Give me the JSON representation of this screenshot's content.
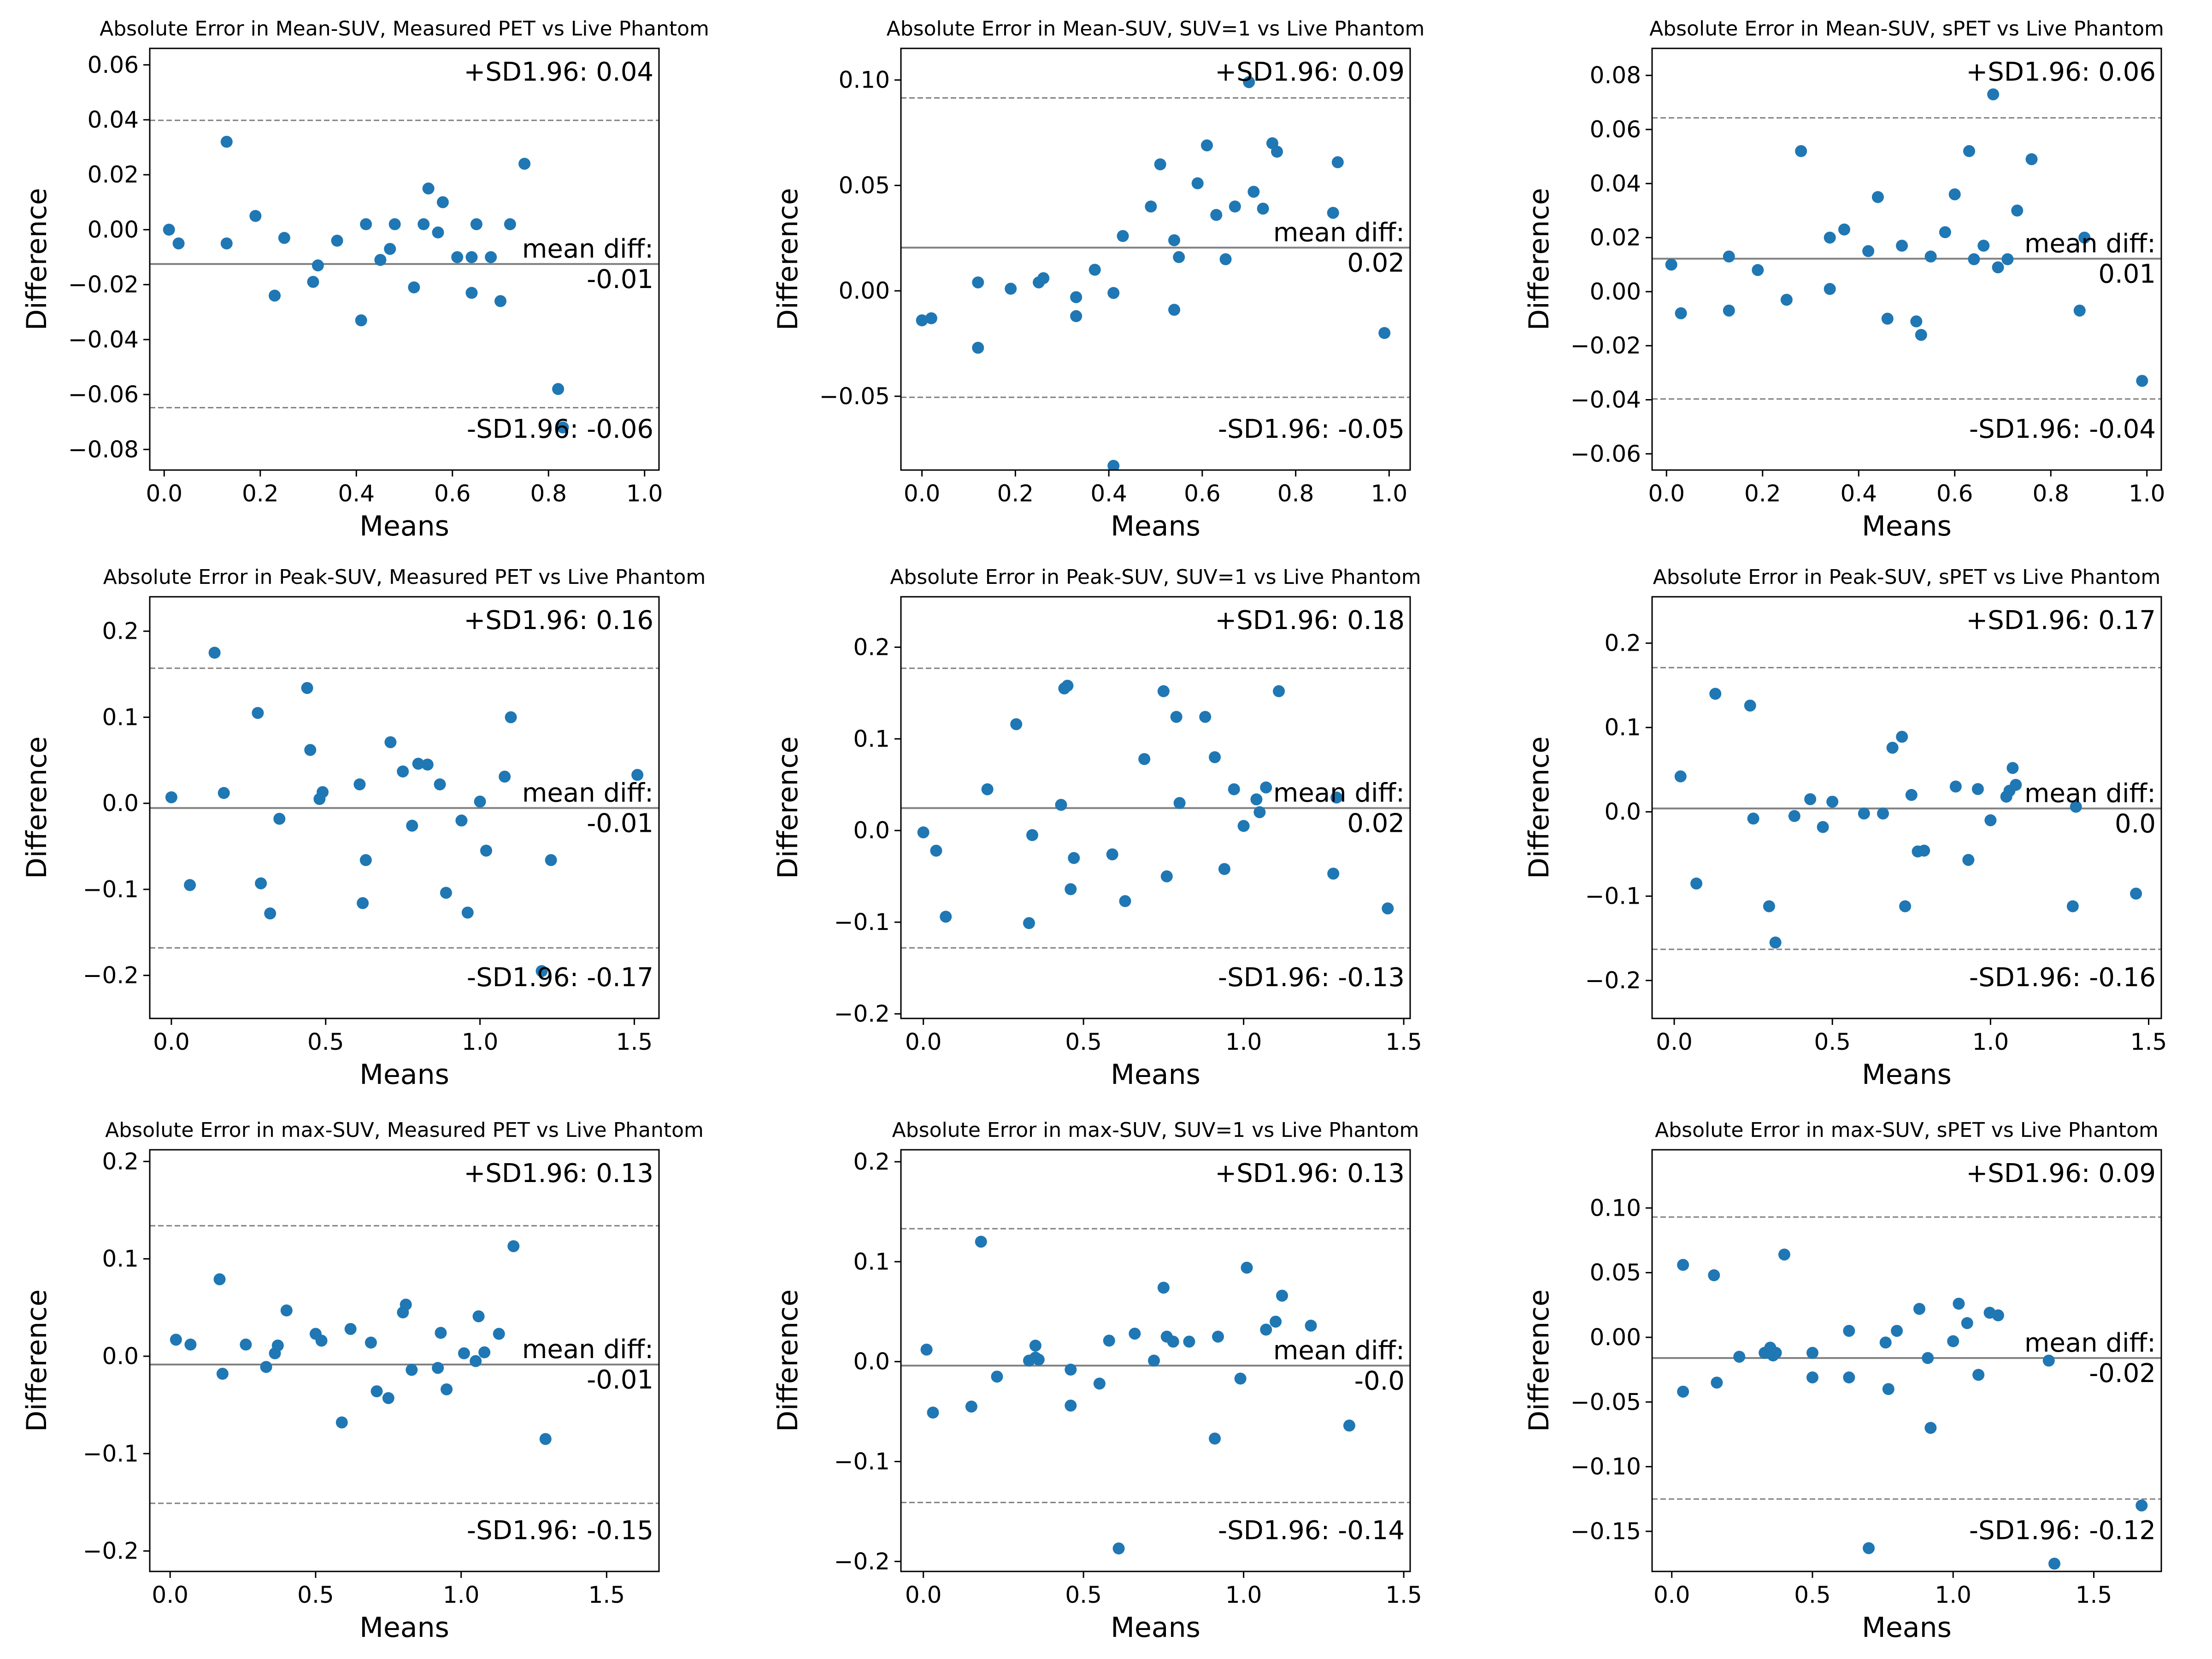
{
  "figure": {
    "xlabel": "Means",
    "ylabel": "Difference",
    "point_color": "#1f77b4",
    "line_color": "#808080",
    "mean_label": "mean diff:",
    "upper_prefix": "+SD1.96: ",
    "lower_prefix": "-SD1.96: "
  },
  "chart_data": [
    {
      "type": "scatter",
      "title": "Absolute Error in Mean-SUV, Measured PET vs Live Phantom",
      "xlabel": "Means",
      "ylabel": "Difference",
      "xlim": [
        -0.03,
        1.03
      ],
      "ylim": [
        -0.0875,
        0.066
      ],
      "xticks": [
        0.0,
        0.2,
        0.4,
        0.6,
        0.8,
        1.0
      ],
      "xtick_labels": [
        "0.0",
        "0.2",
        "0.4",
        "0.6",
        "0.8",
        "1.0"
      ],
      "yticks": [
        -0.08,
        -0.06,
        -0.04,
        -0.02,
        0.0,
        0.02,
        0.04,
        0.06
      ],
      "ytick_labels": [
        "−0.08",
        "−0.06",
        "−0.04",
        "−0.02",
        "0.00",
        "0.02",
        "0.04",
        "0.06"
      ],
      "mean_diff": -0.0125,
      "upper_sd": 0.0398,
      "lower_sd": -0.0648,
      "upper_label": "0.04",
      "mean_label": "-0.01",
      "lower_label": "-0.06",
      "x": [
        0.01,
        0.03,
        0.13,
        0.13,
        0.19,
        0.23,
        0.25,
        0.31,
        0.32,
        0.36,
        0.41,
        0.42,
        0.45,
        0.47,
        0.48,
        0.52,
        0.54,
        0.55,
        0.57,
        0.58,
        0.61,
        0.64,
        0.64,
        0.65,
        0.68,
        0.7,
        0.72,
        0.75,
        0.82,
        0.83
      ],
      "y": [
        0.0,
        -0.005,
        0.032,
        -0.005,
        0.005,
        -0.024,
        -0.003,
        -0.019,
        -0.013,
        -0.004,
        -0.033,
        0.002,
        -0.011,
        -0.007,
        0.002,
        -0.021,
        0.002,
        0.015,
        -0.001,
        0.01,
        -0.01,
        -0.01,
        -0.023,
        0.002,
        -0.01,
        -0.026,
        0.002,
        0.024,
        -0.058,
        -0.072
      ]
    },
    {
      "type": "scatter",
      "title": "Absolute Error in Mean-SUV, SUV=1 vs Live Phantom",
      "xlabel": "Means",
      "ylabel": "Difference",
      "xlim": [
        -0.045,
        1.045
      ],
      "ylim": [
        -0.085,
        0.115
      ],
      "xticks": [
        0.0,
        0.2,
        0.4,
        0.6,
        0.8,
        1.0
      ],
      "xtick_labels": [
        "0.0",
        "0.2",
        "0.4",
        "0.6",
        "0.8",
        "1.0"
      ],
      "yticks": [
        -0.05,
        0.0,
        0.05,
        0.1
      ],
      "ytick_labels": [
        "−0.05",
        "0.00",
        "0.05",
        "0.10"
      ],
      "mean_diff": 0.0205,
      "upper_sd": 0.0915,
      "lower_sd": -0.0505,
      "upper_label": "0.09",
      "mean_label": "0.02",
      "lower_label": "-0.05",
      "x": [
        0.0,
        0.02,
        0.12,
        0.12,
        0.19,
        0.25,
        0.26,
        0.33,
        0.33,
        0.37,
        0.41,
        0.41,
        0.43,
        0.49,
        0.51,
        0.54,
        0.54,
        0.55,
        0.59,
        0.61,
        0.63,
        0.65,
        0.67,
        0.7,
        0.71,
        0.73,
        0.75,
        0.76,
        0.88,
        0.89,
        0.99
      ],
      "y": [
        -0.014,
        -0.013,
        0.004,
        -0.027,
        0.001,
        0.004,
        0.006,
        -0.003,
        -0.012,
        0.01,
        -0.083,
        -0.001,
        0.026,
        0.04,
        0.06,
        0.024,
        -0.009,
        0.016,
        0.051,
        0.069,
        0.036,
        0.015,
        0.04,
        0.099,
        0.047,
        0.039,
        0.07,
        0.066,
        0.037,
        0.061,
        -0.02
      ]
    },
    {
      "type": "scatter",
      "title": "Absolute Error in Mean-SUV, sPET vs Live Phantom",
      "xlabel": "Means",
      "ylabel": "Difference",
      "xlim": [
        -0.03,
        1.03
      ],
      "ylim": [
        -0.066,
        0.09
      ],
      "xticks": [
        0.0,
        0.2,
        0.4,
        0.6,
        0.8,
        1.0
      ],
      "xtick_labels": [
        "0.0",
        "0.2",
        "0.4",
        "0.6",
        "0.8",
        "1.0"
      ],
      "yticks": [
        -0.06,
        -0.04,
        -0.02,
        0.0,
        0.02,
        0.04,
        0.06,
        0.08
      ],
      "ytick_labels": [
        "−0.06",
        "−0.04",
        "−0.02",
        "0.00",
        "0.02",
        "0.04",
        "0.06",
        "0.08"
      ],
      "mean_diff": 0.0122,
      "upper_sd": 0.0643,
      "lower_sd": -0.0397,
      "upper_label": "0.06",
      "mean_label": "0.01",
      "lower_label": "-0.04",
      "x": [
        0.01,
        0.03,
        0.13,
        0.13,
        0.19,
        0.25,
        0.28,
        0.34,
        0.34,
        0.37,
        0.42,
        0.44,
        0.46,
        0.49,
        0.52,
        0.53,
        0.55,
        0.58,
        0.6,
        0.63,
        0.64,
        0.66,
        0.68,
        0.69,
        0.71,
        0.73,
        0.76,
        0.86,
        0.87,
        0.99
      ],
      "y": [
        0.01,
        -0.008,
        0.013,
        -0.007,
        0.008,
        -0.003,
        0.052,
        0.02,
        0.001,
        0.023,
        0.015,
        0.035,
        -0.01,
        0.017,
        -0.011,
        -0.016,
        0.013,
        0.022,
        0.036,
        0.052,
        0.012,
        0.017,
        0.073,
        0.009,
        0.012,
        0.03,
        0.049,
        -0.007,
        0.02,
        -0.033
      ]
    },
    {
      "type": "scatter",
      "title": "Absolute Error in Peak-SUV, Measured PET vs Live Phantom",
      "xlabel": "Means",
      "ylabel": "Difference",
      "xlim": [
        -0.07,
        1.58
      ],
      "ylim": [
        -0.25,
        0.24
      ],
      "xticks": [
        0.0,
        0.5,
        1.0,
        1.5
      ],
      "xtick_labels": [
        "0.0",
        "0.5",
        "1.0",
        "1.5"
      ],
      "yticks": [
        -0.2,
        -0.1,
        0.0,
        0.1,
        0.2
      ],
      "ytick_labels": [
        "−0.2",
        "−0.1",
        "0.0",
        "0.1",
        "0.2"
      ],
      "mean_diff": -0.0055,
      "upper_sd": 0.157,
      "lower_sd": -0.168,
      "upper_label": "0.16",
      "mean_label": "-0.01",
      "lower_label": "-0.17",
      "x": [
        0.0,
        0.06,
        0.14,
        0.17,
        0.28,
        0.29,
        0.32,
        0.35,
        0.44,
        0.45,
        0.48,
        0.49,
        0.61,
        0.62,
        0.63,
        0.71,
        0.75,
        0.78,
        0.8,
        0.83,
        0.87,
        0.89,
        0.94,
        0.96,
        1.0,
        1.02,
        1.08,
        1.1,
        1.2,
        1.23,
        1.51
      ],
      "y": [
        0.007,
        -0.095,
        0.175,
        0.012,
        0.105,
        -0.093,
        -0.128,
        -0.018,
        0.134,
        0.062,
        0.005,
        0.013,
        0.022,
        -0.116,
        -0.066,
        0.071,
        0.037,
        -0.026,
        0.046,
        0.045,
        0.022,
        -0.104,
        -0.02,
        -0.127,
        0.002,
        -0.055,
        0.031,
        0.1,
        -0.195,
        -0.066,
        0.033
      ]
    },
    {
      "type": "scatter",
      "title": "Absolute Error in Peak-SUV, SUV=1 vs Live Phantom",
      "xlabel": "Means",
      "ylabel": "Difference",
      "xlim": [
        -0.07,
        1.52
      ],
      "ylim": [
        -0.205,
        0.255
      ],
      "xticks": [
        0.0,
        0.5,
        1.0,
        1.5
      ],
      "xtick_labels": [
        "0.0",
        "0.5",
        "1.0",
        "1.5"
      ],
      "yticks": [
        -0.2,
        -0.1,
        0.0,
        0.1,
        0.2
      ],
      "ytick_labels": [
        "−0.2",
        "−0.1",
        "0.0",
        "0.1",
        "0.2"
      ],
      "mean_diff": 0.0245,
      "upper_sd": 0.177,
      "lower_sd": -0.128,
      "upper_label": "0.18",
      "mean_label": "0.02",
      "lower_label": "-0.13",
      "x": [
        0.0,
        0.04,
        0.07,
        0.2,
        0.29,
        0.33,
        0.34,
        0.43,
        0.44,
        0.45,
        0.46,
        0.47,
        0.59,
        0.63,
        0.69,
        0.75,
        0.76,
        0.79,
        0.8,
        0.88,
        0.91,
        0.94,
        0.97,
        1.0,
        1.04,
        1.05,
        1.07,
        1.11,
        1.28,
        1.29,
        1.45
      ],
      "y": [
        -0.002,
        -0.022,
        -0.094,
        0.045,
        0.116,
        -0.101,
        -0.005,
        0.028,
        0.155,
        0.158,
        -0.064,
        -0.03,
        -0.026,
        -0.077,
        0.078,
        0.152,
        -0.05,
        0.124,
        0.03,
        0.124,
        0.08,
        -0.042,
        0.045,
        0.005,
        0.034,
        0.02,
        0.047,
        0.152,
        -0.047,
        0.036,
        -0.085
      ]
    },
    {
      "type": "scatter",
      "title": "Absolute Error in Peak-SUV, sPET vs Live Phantom",
      "xlabel": "Means",
      "ylabel": "Difference",
      "xlim": [
        -0.07,
        1.54
      ],
      "ylim": [
        -0.245,
        0.255
      ],
      "xticks": [
        0.0,
        0.5,
        1.0,
        1.5
      ],
      "xtick_labels": [
        "0.0",
        "0.5",
        "1.0",
        "1.5"
      ],
      "yticks": [
        -0.2,
        -0.1,
        0.0,
        0.1,
        0.2
      ],
      "ytick_labels": [
        "−0.2",
        "−0.1",
        "0.0",
        "0.1",
        "0.2"
      ],
      "mean_diff": 0.004,
      "upper_sd": 0.171,
      "lower_sd": -0.163,
      "upper_label": "0.17",
      "mean_label": "0.0",
      "lower_label": "-0.16",
      "x": [
        0.02,
        0.07,
        0.13,
        0.24,
        0.25,
        0.3,
        0.32,
        0.38,
        0.43,
        0.47,
        0.5,
        0.6,
        0.66,
        0.69,
        0.72,
        0.73,
        0.75,
        0.77,
        0.79,
        0.89,
        0.93,
        0.96,
        1.0,
        1.05,
        1.06,
        1.07,
        1.08,
        1.26,
        1.27,
        1.46
      ],
      "y": [
        0.042,
        -0.085,
        0.14,
        0.126,
        -0.008,
        -0.112,
        -0.155,
        -0.005,
        0.015,
        -0.018,
        0.012,
        -0.002,
        -0.002,
        0.076,
        0.089,
        -0.112,
        0.02,
        -0.047,
        -0.046,
        0.03,
        -0.057,
        0.027,
        -0.01,
        0.018,
        0.025,
        0.052,
        0.032,
        -0.112,
        0.006,
        -0.097
      ]
    },
    {
      "type": "scatter",
      "title": "Absolute Error in max-SUV, Measured PET vs Live Phantom",
      "xlabel": "Means",
      "ylabel": "Difference",
      "xlim": [
        -0.07,
        1.68
      ],
      "ylim": [
        -0.221,
        0.212
      ],
      "xticks": [
        0.0,
        0.5,
        1.0,
        1.5
      ],
      "xtick_labels": [
        "0.0",
        "0.5",
        "1.0",
        "1.5"
      ],
      "yticks": [
        -0.2,
        -0.1,
        0.0,
        0.1,
        0.2
      ],
      "ytick_labels": [
        "−0.2",
        "−0.1",
        "0.0",
        "0.1",
        "0.2"
      ],
      "mean_diff": -0.0085,
      "upper_sd": 0.134,
      "lower_sd": -0.151,
      "upper_label": "0.13",
      "mean_label": "-0.01",
      "lower_label": "-0.15",
      "x": [
        0.02,
        0.07,
        0.17,
        0.18,
        0.26,
        0.33,
        0.36,
        0.37,
        0.4,
        0.5,
        0.52,
        0.59,
        0.62,
        0.69,
        0.71,
        0.75,
        0.8,
        0.81,
        0.83,
        0.92,
        0.93,
        0.95,
        1.01,
        1.05,
        1.06,
        1.08,
        1.13,
        1.18,
        1.29
      ],
      "y": [
        0.017,
        0.012,
        0.079,
        -0.018,
        0.012,
        -0.011,
        0.003,
        0.011,
        0.047,
        0.023,
        0.016,
        -0.068,
        0.028,
        0.014,
        -0.036,
        -0.043,
        0.045,
        0.053,
        -0.014,
        -0.012,
        0.024,
        -0.034,
        0.003,
        -0.005,
        0.041,
        0.004,
        0.023,
        0.113,
        -0.085
      ]
    },
    {
      "type": "scatter",
      "title": "Absolute Error in max-SUV, SUV=1 vs Live Phantom",
      "xlabel": "Means",
      "ylabel": "Difference",
      "xlim": [
        -0.07,
        1.52
      ],
      "ylim": [
        -0.21,
        0.212
      ],
      "xticks": [
        0.0,
        0.5,
        1.0,
        1.5
      ],
      "xtick_labels": [
        "0.0",
        "0.5",
        "1.0",
        "1.5"
      ],
      "yticks": [
        -0.2,
        -0.1,
        0.0,
        0.1,
        0.2
      ],
      "ytick_labels": [
        "−0.2",
        "−0.1",
        "0.0",
        "0.1",
        "0.2"
      ],
      "mean_diff": -0.004,
      "upper_sd": 0.133,
      "lower_sd": -0.141,
      "upper_label": "0.13",
      "mean_label": "-0.0",
      "lower_label": "-0.14",
      "x": [
        0.01,
        0.03,
        0.15,
        0.18,
        0.23,
        0.33,
        0.35,
        0.35,
        0.36,
        0.46,
        0.46,
        0.55,
        0.58,
        0.61,
        0.66,
        0.72,
        0.75,
        0.76,
        0.78,
        0.83,
        0.91,
        0.92,
        0.99,
        1.01,
        1.07,
        1.1,
        1.12,
        1.21,
        1.33
      ],
      "y": [
        0.012,
        -0.051,
        -0.045,
        0.12,
        -0.015,
        0.001,
        0.004,
        0.016,
        0.002,
        -0.008,
        -0.044,
        -0.022,
        0.021,
        -0.187,
        0.028,
        0.001,
        0.074,
        0.025,
        0.02,
        0.02,
        -0.077,
        0.025,
        -0.017,
        0.094,
        0.032,
        0.04,
        0.066,
        0.036,
        -0.064
      ]
    },
    {
      "type": "scatter",
      "title": "Absolute Error in max-SUV, sPET vs Live Phantom",
      "xlabel": "Means",
      "ylabel": "Difference",
      "xlim": [
        -0.07,
        1.74
      ],
      "ylim": [
        -0.181,
        0.145
      ],
      "xticks": [
        0.0,
        0.5,
        1.0,
        1.5
      ],
      "xtick_labels": [
        "0.0",
        "0.5",
        "1.0",
        "1.5"
      ],
      "yticks": [
        -0.15,
        -0.1,
        -0.05,
        0.0,
        0.05,
        0.1
      ],
      "ytick_labels": [
        "−0.15",
        "−0.10",
        "−0.05",
        "0.00",
        "0.05",
        "0.10"
      ],
      "mean_diff": -0.016,
      "upper_sd": 0.093,
      "lower_sd": -0.125,
      "upper_label": "0.09",
      "mean_label": "-0.02",
      "lower_label": "-0.12",
      "x": [
        0.04,
        0.04,
        0.15,
        0.16,
        0.24,
        0.33,
        0.35,
        0.36,
        0.37,
        0.4,
        0.5,
        0.5,
        0.63,
        0.63,
        0.7,
        0.76,
        0.77,
        0.8,
        0.88,
        0.91,
        0.92,
        1.0,
        1.02,
        1.05,
        1.09,
        1.13,
        1.16,
        1.34,
        1.36,
        1.67
      ],
      "y": [
        0.056,
        -0.042,
        0.048,
        -0.035,
        -0.015,
        -0.012,
        -0.008,
        -0.014,
        -0.012,
        0.064,
        -0.012,
        -0.031,
        0.005,
        -0.031,
        -0.163,
        -0.004,
        -0.04,
        0.005,
        0.022,
        -0.016,
        -0.07,
        -0.003,
        0.026,
        0.011,
        -0.029,
        0.019,
        0.017,
        -0.018,
        -0.175,
        -0.13
      ]
    }
  ]
}
